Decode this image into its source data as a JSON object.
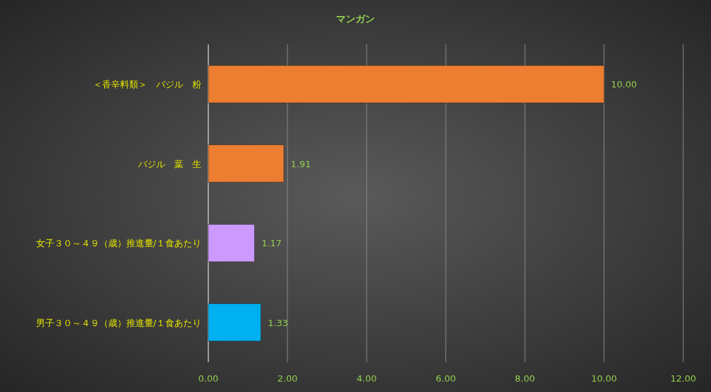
{
  "chart_data": {
    "type": "bar",
    "title": "マンガン",
    "orientation": "horizontal",
    "categories": [
      "＜香辛料類＞　バジル　粉",
      "バジル　葉　生",
      "女子３０～４９（歳）推進量/１食あたり",
      "男子３０～４９（歳）推進量/１食あたり"
    ],
    "values": [
      10.0,
      1.91,
      1.17,
      1.33
    ],
    "colors": [
      "#ed7d31",
      "#ed7d31",
      "#cc99ff",
      "#00b0f0"
    ],
    "value_labels": [
      "10.00",
      "1.91",
      "1.17",
      "1.33"
    ],
    "xlim": [
      0,
      12
    ],
    "xticks": [
      {
        "value": 0,
        "label": "0.00"
      },
      {
        "value": 2,
        "label": "2.00"
      },
      {
        "value": 4,
        "label": "4.00"
      },
      {
        "value": 6,
        "label": "6.00"
      },
      {
        "value": 8,
        "label": "8.00"
      },
      {
        "value": 10,
        "label": "10.00"
      },
      {
        "value": 12,
        "label": "12.00"
      }
    ],
    "grid": "x"
  }
}
